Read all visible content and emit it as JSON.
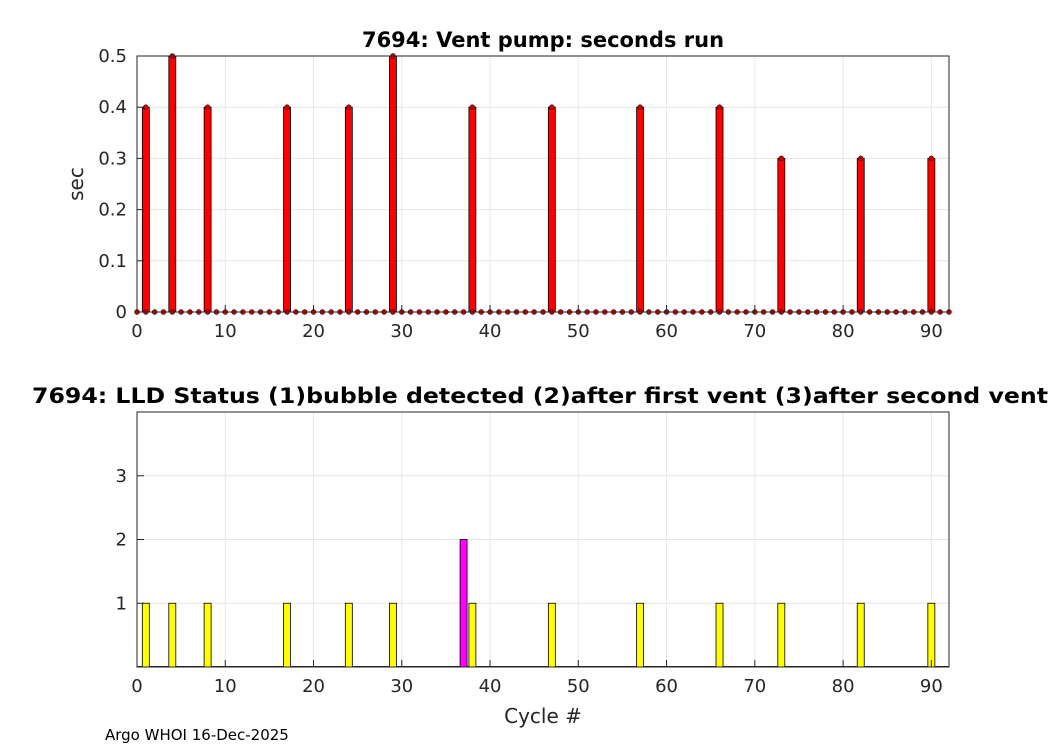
{
  "chart_data": [
    {
      "type": "bar",
      "title": "7694: Vent pump: seconds run",
      "xlabel": "",
      "ylabel": "sec",
      "xlim": [
        0,
        92
      ],
      "ylim": [
        0,
        0.5
      ],
      "xticks": [
        "0",
        "10",
        "20",
        "30",
        "40",
        "50",
        "60",
        "70",
        "80",
        "90"
      ],
      "yticks": [
        "0",
        "0.1",
        "0.2",
        "0.3",
        "0.4",
        "0.5"
      ],
      "bar_color": "#ff0000",
      "marker_color": "#cc0000",
      "x": [
        0,
        1,
        2,
        3,
        4,
        5,
        6,
        7,
        8,
        9,
        10,
        11,
        12,
        13,
        14,
        15,
        16,
        17,
        18,
        19,
        20,
        21,
        22,
        23,
        24,
        25,
        26,
        27,
        28,
        29,
        30,
        31,
        32,
        33,
        34,
        35,
        36,
        37,
        38,
        39,
        40,
        41,
        42,
        43,
        44,
        45,
        46,
        47,
        48,
        49,
        50,
        51,
        52,
        53,
        54,
        55,
        56,
        57,
        58,
        59,
        60,
        61,
        62,
        63,
        64,
        65,
        66,
        67,
        68,
        69,
        70,
        71,
        72,
        73,
        74,
        75,
        76,
        77,
        78,
        79,
        80,
        81,
        82,
        83,
        84,
        85,
        86,
        87,
        88,
        89,
        90,
        91,
        92
      ],
      "values": [
        0,
        0.4,
        0,
        0,
        0.5,
        0,
        0,
        0,
        0.4,
        0,
        0,
        0,
        0,
        0,
        0,
        0,
        0,
        0.4,
        0,
        0,
        0,
        0,
        0,
        0,
        0.4,
        0,
        0,
        0,
        0,
        0.5,
        0,
        0,
        0,
        0,
        0,
        0,
        0,
        0,
        0.4,
        0,
        0,
        0,
        0,
        0,
        0,
        0,
        0,
        0.4,
        0,
        0,
        0,
        0,
        0,
        0,
        0,
        0,
        0,
        0.4,
        0,
        0,
        0,
        0,
        0,
        0,
        0,
        0,
        0.4,
        0,
        0,
        0,
        0,
        0,
        0,
        0.3,
        0,
        0,
        0,
        0,
        0,
        0,
        0,
        0,
        0.3,
        0,
        0,
        0,
        0,
        0,
        0,
        0,
        0.3,
        0,
        0
      ]
    },
    {
      "type": "bar",
      "title": "7694: LLD Status   (1)bubble detected   (2)after first vent  (3)after second vent",
      "xlabel": "Cycle #",
      "ylabel": "",
      "xlim": [
        0,
        92
      ],
      "ylim": [
        0,
        4
      ],
      "xticks": [
        "0",
        "10",
        "20",
        "30",
        "40",
        "50",
        "60",
        "70",
        "80",
        "90"
      ],
      "yticks": [
        "1",
        "2",
        "3"
      ],
      "colors": {
        "1": "#ffff00",
        "2": "#ff00ff",
        "3": "#00ffff"
      },
      "x": [
        1,
        4,
        8,
        17,
        24,
        29,
        37,
        38,
        47,
        57,
        66,
        73,
        82,
        90
      ],
      "values": [
        1,
        1,
        1,
        1,
        1,
        1,
        2,
        1,
        1,
        1,
        1,
        1,
        1,
        1
      ]
    }
  ],
  "footer": "Argo WHOI 16-Dec-2025"
}
